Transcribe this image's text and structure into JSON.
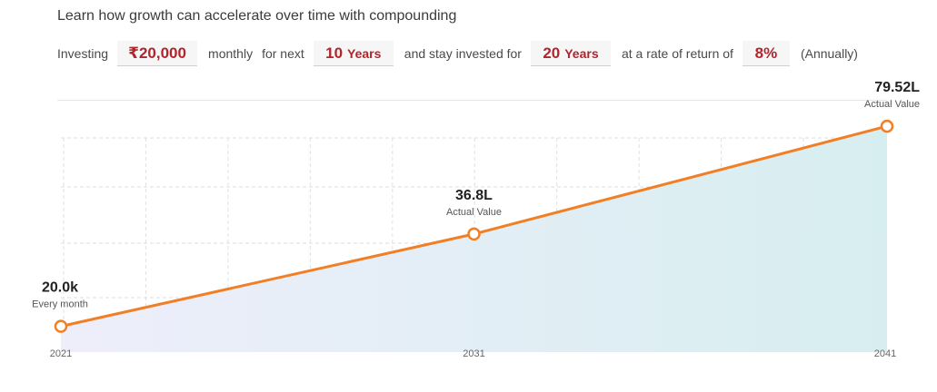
{
  "headline": "Learn how growth can accelerate over time with compounding",
  "calculator": {
    "prefix": "Investing",
    "amount": "₹20,000",
    "frequency": "monthly",
    "for_next_label": "for next",
    "invest_years_value": "10",
    "invest_years_unit": "Years",
    "stay_label": "and stay invested for",
    "stay_years_value": "20",
    "stay_years_unit": "Years",
    "rate_label": "at a rate of return of",
    "rate": "8%",
    "rate_suffix": "(Annually)"
  },
  "chart_data": {
    "type": "area",
    "x": [
      2021,
      2031,
      2041
    ],
    "y": [
      0.2,
      36.8,
      79.52
    ],
    "y_unit": "L",
    "tick_labels": [
      "2021",
      "2031",
      "2041"
    ],
    "points": [
      {
        "value": "20.0k",
        "label": "Every month"
      },
      {
        "value": "36.8L",
        "label": "Actual Value"
      },
      {
        "value": "79.52L",
        "label": "Actual Value"
      }
    ],
    "line_color": "#f07f26",
    "fill_top_color": "#d7eef0",
    "fill_bottom_color": "#eeeefb",
    "grid": true,
    "xlim": [
      2021,
      2041
    ],
    "ylim": [
      -10,
      90
    ]
  }
}
